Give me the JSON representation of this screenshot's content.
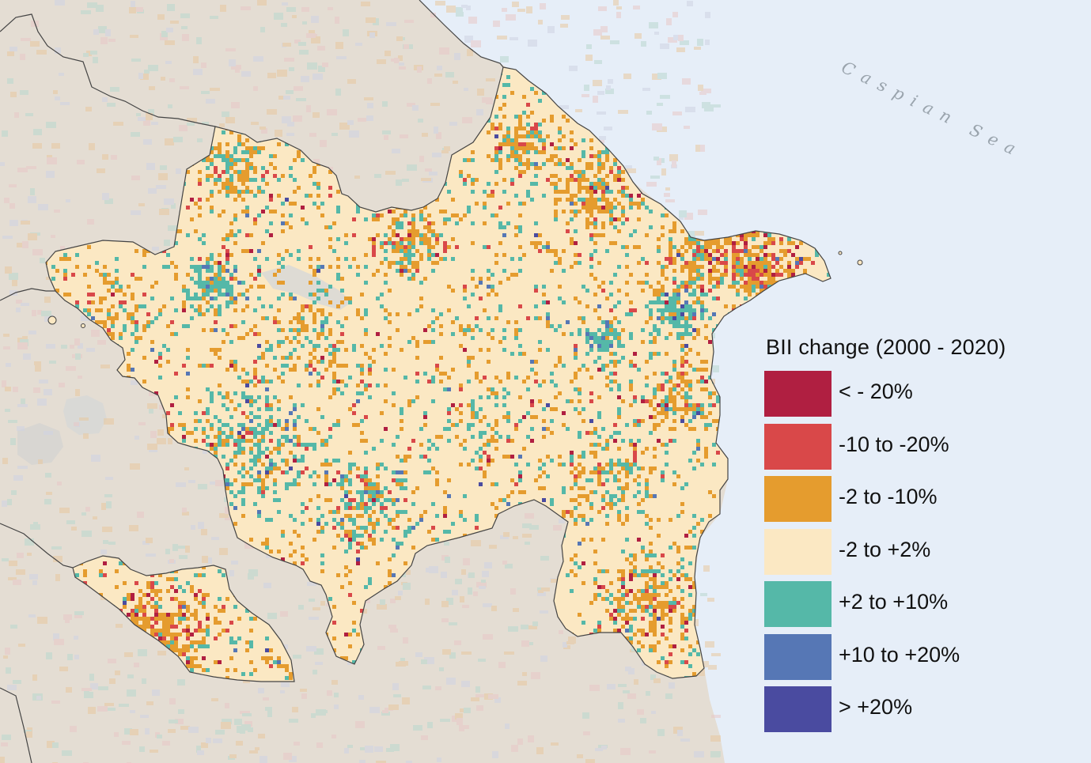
{
  "map": {
    "sea_label": "Caspian Sea",
    "colors": {
      "sea": "#e6eef8",
      "land": "#e4ddd3",
      "country": "#fbe8c3",
      "border": "#444444",
      "lake": "#dcdcdc"
    }
  },
  "legend": {
    "title": "BII change (2000 - 2020)",
    "items": [
      {
        "label": "< - 20%",
        "color": "#b01f41"
      },
      {
        "label": "-10 to -20%",
        "color": "#d94849"
      },
      {
        "label": "-2 to -10%",
        "color": "#e59c2e"
      },
      {
        "label": "-2 to +2%",
        "color": "#fbe8c3"
      },
      {
        "label": "+2 to +10%",
        "color": "#55b8a8"
      },
      {
        "label": "+10 to +20%",
        "color": "#5677b5"
      },
      {
        "label": "> +20%",
        "color": "#4a4ba0"
      }
    ]
  }
}
